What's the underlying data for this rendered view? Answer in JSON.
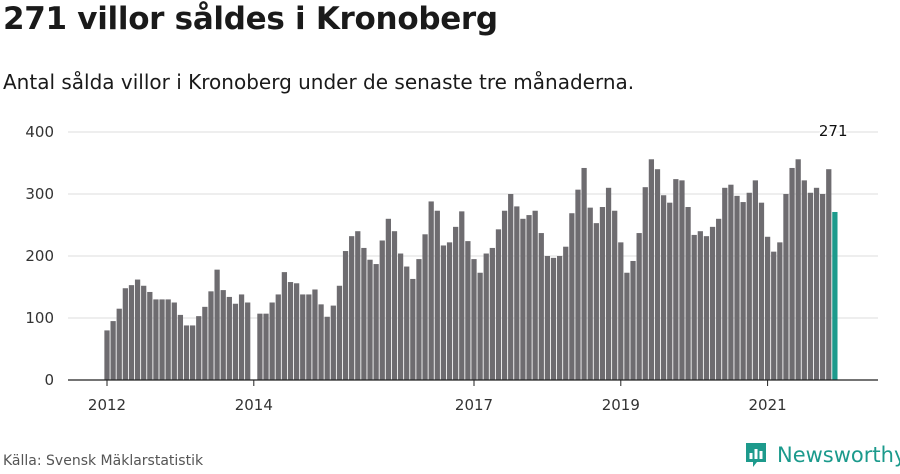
{
  "title": "271 villor såldes i Kronoberg",
  "subtitle": "Antal sålda villor i Kronoberg under de senaste tre månaderna.",
  "source": "Källa: Svensk Mäklarstatistik",
  "brand": {
    "name": "Newsworthy",
    "icon": "newsworthy-logo-icon"
  },
  "colors": {
    "bar": "#6e6c70",
    "highlight": "#1d9a8c",
    "grid": "#dddddd",
    "axis": "#222222"
  },
  "chart_data": {
    "type": "bar",
    "title": "271 villor såldes i Kronoberg",
    "subtitle": "Antal sålda villor i Kronoberg under de senaste tre månaderna.",
    "xlabel": "",
    "ylabel": "",
    "ylim": [
      0,
      400
    ],
    "yticks": [
      0,
      100,
      200,
      300,
      400
    ],
    "grid": true,
    "x_start_year": 2012,
    "x_end_year": 2022,
    "xtick_labels": [
      "2012",
      "2014",
      "2017",
      "2019",
      "2021"
    ],
    "x_start": "2012-01",
    "interval": "month",
    "values": [
      80,
      95,
      115,
      148,
      153,
      162,
      152,
      142,
      130,
      130,
      130,
      125,
      105,
      88,
      88,
      103,
      118,
      143,
      178,
      145,
      134,
      123,
      138,
      125,
      0,
      107,
      107,
      125,
      138,
      174,
      158,
      156,
      138,
      138,
      146,
      122,
      102,
      120,
      152,
      208,
      232,
      240,
      213,
      194,
      187,
      225,
      260,
      240,
      204,
      183,
      163,
      195,
      235,
      288,
      273,
      217,
      222,
      247,
      272,
      224,
      195,
      173,
      204,
      213,
      243,
      273,
      300,
      280,
      260,
      266,
      273,
      237,
      200,
      197,
      200,
      215,
      269,
      307,
      342,
      278,
      253,
      279,
      310,
      273,
      222,
      173,
      192,
      237,
      311,
      356,
      340,
      298,
      286,
      324,
      322,
      279,
      234,
      240,
      232,
      247,
      260,
      310,
      315,
      297,
      287,
      302,
      322,
      286,
      231,
      207,
      222,
      300,
      342,
      356,
      322,
      302,
      310,
      300,
      340,
      271
    ],
    "highlight_index": 119,
    "annotation": {
      "label": "271",
      "value": 271
    }
  }
}
